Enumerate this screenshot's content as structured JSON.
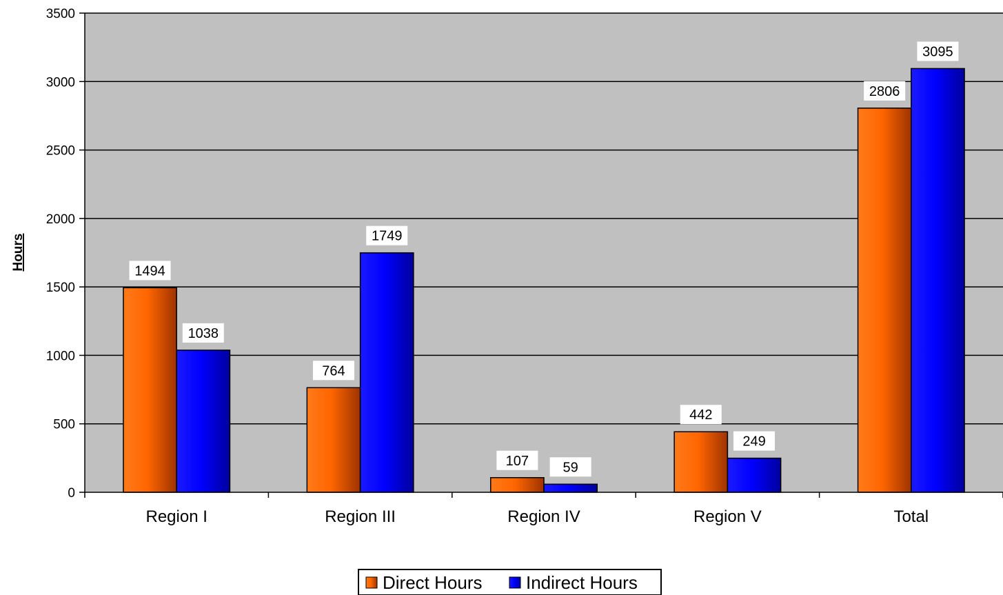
{
  "chart_data": {
    "type": "bar",
    "title": "",
    "xlabel": "",
    "ylabel": "Hours",
    "ylim": [
      0,
      3500
    ],
    "yticks": [
      0,
      500,
      1000,
      1500,
      2000,
      2500,
      3000,
      3500
    ],
    "grid": true,
    "legend_position": "bottom",
    "categories": [
      "Region I",
      "Region III",
      "Region IV",
      "Region V",
      "Total"
    ],
    "series": [
      {
        "name": "Direct Hours",
        "values": [
          1494,
          764,
          107,
          442,
          2806
        ],
        "color": "#ff6600"
      },
      {
        "name": "Indirect Hours",
        "values": [
          1038,
          1749,
          59,
          249,
          3095
        ],
        "color": "#0000ff"
      }
    ],
    "plot_background": "#c0c0c0"
  }
}
